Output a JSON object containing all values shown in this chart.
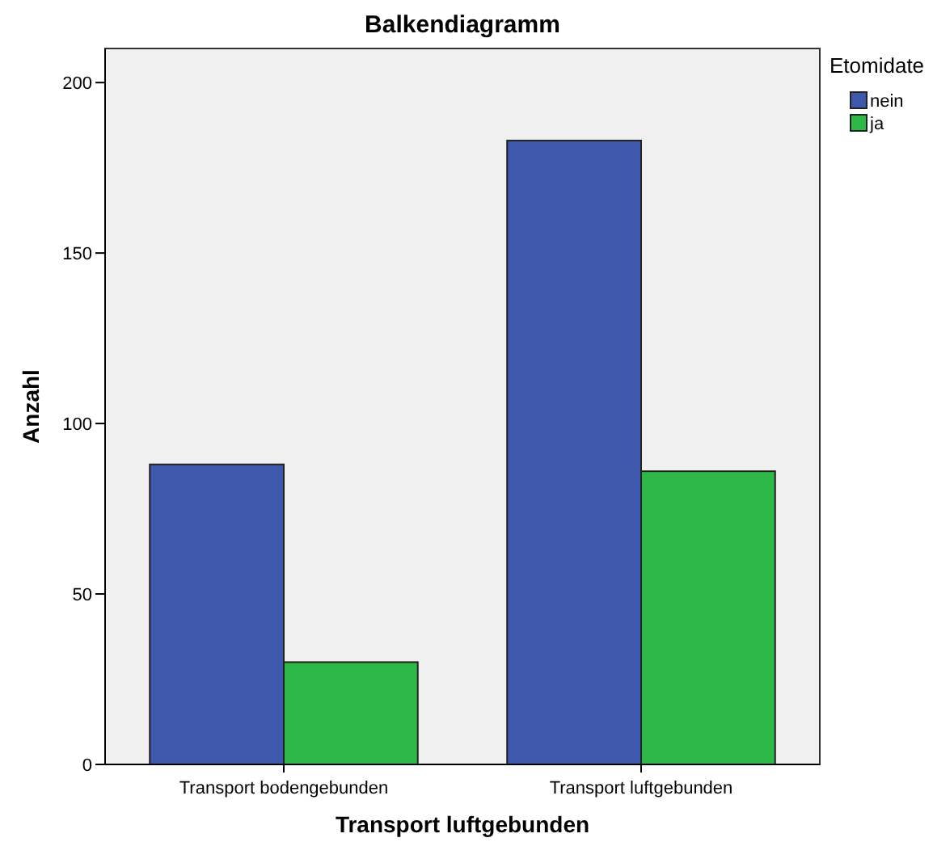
{
  "chart_data": {
    "type": "bar",
    "title": "Balkendiagramm",
    "xlabel": "Transport luftgebunden",
    "ylabel": "Anzahl",
    "legend_title": "Etomidate",
    "categories": [
      "Transport bodengebunden",
      "Transport luftgebunden"
    ],
    "series": [
      {
        "name": "nein",
        "color": "#3e58ac",
        "values": [
          88,
          183
        ]
      },
      {
        "name": "ja",
        "color": "#2eb848",
        "values": [
          30,
          86
        ]
      }
    ],
    "ylim": [
      0,
      210
    ],
    "yticks": [
      0,
      50,
      100,
      150,
      200
    ],
    "grid": false,
    "legend": "top right"
  }
}
